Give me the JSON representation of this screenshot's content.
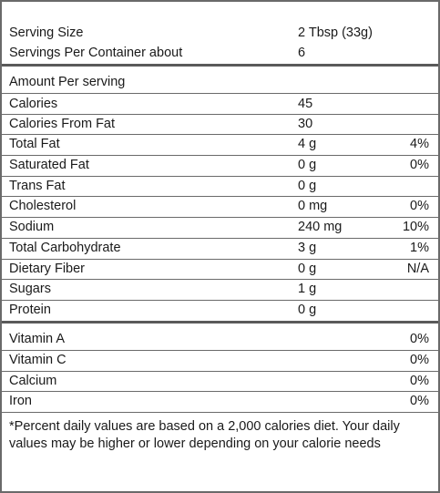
{
  "header": {
    "serving_size_label": "Serving Size",
    "serving_size_value": "2 Tbsp (33g)",
    "servings_label": "Servings Per Container about",
    "servings_value": "6"
  },
  "amount_per_serving": "Amount Per serving",
  "nutrients": [
    {
      "name": "Calories",
      "amount": "45",
      "dv": ""
    },
    {
      "name": "Calories From Fat",
      "amount": "30",
      "dv": ""
    },
    {
      "name": "Total Fat",
      "amount": "4 g",
      "dv": "4%"
    },
    {
      "name": "Saturated Fat",
      "amount": "0 g",
      "dv": "0%"
    },
    {
      "name": "Trans Fat",
      "amount": "0 g",
      "dv": ""
    },
    {
      "name": "Cholesterol",
      "amount": "0 mg",
      "dv": "0%"
    },
    {
      "name": "Sodium",
      "amount": "240 mg",
      "dv": "10%"
    },
    {
      "name": "Total Carbohydrate",
      "amount": "3 g",
      "dv": "1%"
    },
    {
      "name": "Dietary Fiber",
      "amount": "0 g",
      "dv": "N/A"
    },
    {
      "name": "Sugars",
      "amount": "1 g",
      "dv": ""
    },
    {
      "name": "Protein",
      "amount": "0 g",
      "dv": ""
    }
  ],
  "vitamins": [
    {
      "name": "Vitamin A",
      "dv": "0%"
    },
    {
      "name": "Vitamin C",
      "dv": "0%"
    },
    {
      "name": "Calcium",
      "dv": "0%"
    },
    {
      "name": "Iron",
      "dv": "0%"
    }
  ],
  "footnote": "*Percent daily values are based on a 2,000 calories diet. Your daily values may be higher or lower depending on your calorie needs"
}
